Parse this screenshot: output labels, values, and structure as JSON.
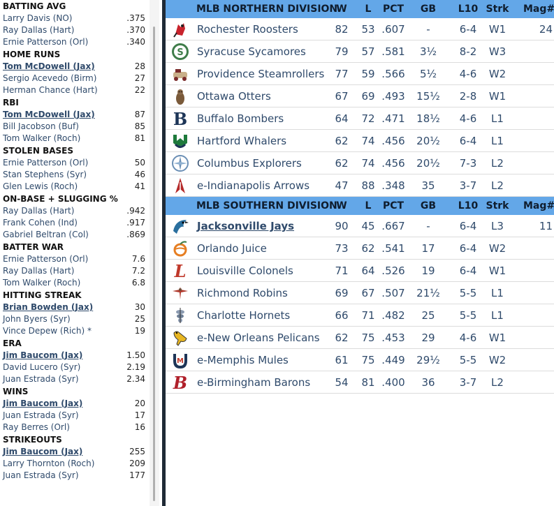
{
  "leaders": [
    {
      "title": "BATTING AVG",
      "rows": [
        {
          "name": "Larry Davis (NO)",
          "value": ".375",
          "own": false
        },
        {
          "name": "Ray Dallas (Hart)",
          "value": ".370",
          "own": false
        },
        {
          "name": "Ernie Patterson (Orl)",
          "value": ".340",
          "own": false
        }
      ]
    },
    {
      "title": "HOME RUNS",
      "rows": [
        {
          "name": "Tom McDowell (Jax)",
          "value": "28",
          "own": true
        },
        {
          "name": "Sergio Acevedo (Birm)",
          "value": "27",
          "own": false
        },
        {
          "name": "Herman Chance (Hart)",
          "value": "22",
          "own": false
        }
      ]
    },
    {
      "title": "RBI",
      "rows": [
        {
          "name": "Tom McDowell (Jax)",
          "value": "87",
          "own": true
        },
        {
          "name": "Bill Jacobson (Buf)",
          "value": "85",
          "own": false
        },
        {
          "name": "Tom Walker (Roch)",
          "value": "81",
          "own": false
        }
      ]
    },
    {
      "title": "STOLEN BASES",
      "rows": [
        {
          "name": "Ernie Patterson (Orl)",
          "value": "50",
          "own": false
        },
        {
          "name": "Stan Stephens (Syr)",
          "value": "46",
          "own": false
        },
        {
          "name": "Glen Lewis (Roch)",
          "value": "41",
          "own": false
        }
      ]
    },
    {
      "title": "ON-BASE + SLUGGING %",
      "rows": [
        {
          "name": "Ray Dallas (Hart)",
          "value": ".942",
          "own": false
        },
        {
          "name": "Frank Cohen (Ind)",
          "value": ".917",
          "own": false
        },
        {
          "name": "Gabriel Beltran (Col)",
          "value": ".869",
          "own": false
        }
      ]
    },
    {
      "title": "BATTER WAR",
      "rows": [
        {
          "name": "Ernie Patterson (Orl)",
          "value": "7.6",
          "own": false
        },
        {
          "name": "Ray Dallas (Hart)",
          "value": "7.2",
          "own": false
        },
        {
          "name": "Tom Walker (Roch)",
          "value": "6.8",
          "own": false
        }
      ]
    },
    {
      "title": "HITTING STREAK",
      "rows": [
        {
          "name": "Brian Bowden (Jax)",
          "value": "30",
          "own": true
        },
        {
          "name": "John Byers (Syr)",
          "value": "25",
          "own": false
        },
        {
          "name": "Vince Depew (Rich) *",
          "value": "19",
          "own": false
        }
      ]
    },
    {
      "title": "ERA",
      "rows": [
        {
          "name": "Jim Baucom (Jax)",
          "value": "1.50",
          "own": true
        },
        {
          "name": "David Lucero (Syr)",
          "value": "2.19",
          "own": false
        },
        {
          "name": "Juan Estrada (Syr)",
          "value": "2.34",
          "own": false
        }
      ]
    },
    {
      "title": "WINS",
      "rows": [
        {
          "name": "Jim Baucom (Jax)",
          "value": "20",
          "own": true
        },
        {
          "name": "Juan Estrada (Syr)",
          "value": "17",
          "own": false
        },
        {
          "name": "Ray Berres (Orl)",
          "value": "16",
          "own": false
        }
      ]
    },
    {
      "title": "STRIKEOUTS",
      "rows": [
        {
          "name": "Jim Baucom (Jax)",
          "value": "255",
          "own": true
        },
        {
          "name": "Larry Thornton (Roch)",
          "value": "209",
          "own": false
        },
        {
          "name": "Juan Estrada (Syr)",
          "value": "177",
          "own": false
        }
      ]
    }
  ],
  "columns": {
    "w": "W",
    "l": "L",
    "pct": "PCT",
    "gb": "GB",
    "l10": "L10",
    "strk": "Strk",
    "mag": "Mag#"
  },
  "divisions": [
    {
      "title": "MLB NORTHERN DIVISION",
      "teams": [
        {
          "name": "Rochester Roosters",
          "logo": "rooster-logo",
          "w": "82",
          "l": "53",
          "pct": ".607",
          "gb": "-",
          "l10": "6-4",
          "strk": "W1",
          "mag": "24",
          "own": false
        },
        {
          "name": "Syracuse Sycamores",
          "logo": "sycamore-logo",
          "w": "79",
          "l": "57",
          "pct": ".581",
          "gb": "3½",
          "l10": "8-2",
          "strk": "W3",
          "mag": "",
          "own": false
        },
        {
          "name": "Providence Steamrollers",
          "logo": "steamroller-logo",
          "w": "77",
          "l": "59",
          "pct": ".566",
          "gb": "5½",
          "l10": "4-6",
          "strk": "W2",
          "mag": "",
          "own": false
        },
        {
          "name": "Ottawa Otters",
          "logo": "otter-logo",
          "w": "67",
          "l": "69",
          "pct": ".493",
          "gb": "15½",
          "l10": "2-8",
          "strk": "W1",
          "mag": "",
          "own": false
        },
        {
          "name": "Buffalo Bombers",
          "logo": "letter-b-logo",
          "w": "64",
          "l": "72",
          "pct": ".471",
          "gb": "18½",
          "l10": "4-6",
          "strk": "L1",
          "mag": "",
          "own": false
        },
        {
          "name": "Hartford Whalers",
          "logo": "whalers-logo",
          "w": "62",
          "l": "74",
          "pct": ".456",
          "gb": "20½",
          "l10": "6-4",
          "strk": "L1",
          "mag": "",
          "own": false
        },
        {
          "name": "Columbus Explorers",
          "logo": "compass-logo",
          "w": "62",
          "l": "74",
          "pct": ".456",
          "gb": "20½",
          "l10": "7-3",
          "strk": "L2",
          "mag": "",
          "own": false
        },
        {
          "name": "e-Indianapolis Arrows",
          "logo": "arrow-logo",
          "w": "47",
          "l": "88",
          "pct": ".348",
          "gb": "35",
          "l10": "3-7",
          "strk": "L2",
          "mag": "",
          "own": false
        }
      ]
    },
    {
      "title": "MLB SOUTHERN DIVISION",
      "teams": [
        {
          "name": "Jacksonville Jays",
          "logo": "jay-logo",
          "w": "90",
          "l": "45",
          "pct": ".667",
          "gb": "-",
          "l10": "6-4",
          "strk": "L3",
          "mag": "11",
          "own": true
        },
        {
          "name": "Orlando Juice",
          "logo": "orange-logo",
          "w": "73",
          "l": "62",
          "pct": ".541",
          "gb": "17",
          "l10": "6-4",
          "strk": "W2",
          "mag": "",
          "own": false
        },
        {
          "name": "Louisville Colonels",
          "logo": "script-l-logo",
          "w": "71",
          "l": "64",
          "pct": ".526",
          "gb": "19",
          "l10": "6-4",
          "strk": "W1",
          "mag": "",
          "own": false
        },
        {
          "name": "Richmond Robins",
          "logo": "robin-logo",
          "w": "69",
          "l": "67",
          "pct": ".507",
          "gb": "21½",
          "l10": "5-5",
          "strk": "L1",
          "mag": "",
          "own": false
        },
        {
          "name": "Charlotte Hornets",
          "logo": "hornet-logo",
          "w": "66",
          "l": "71",
          "pct": ".482",
          "gb": "25",
          "l10": "5-5",
          "strk": "L1",
          "mag": "",
          "own": false
        },
        {
          "name": "e-New Orleans Pelicans",
          "logo": "pelican-logo",
          "w": "62",
          "l": "75",
          "pct": ".453",
          "gb": "29",
          "l10": "4-6",
          "strk": "W1",
          "mag": "",
          "own": false
        },
        {
          "name": "e-Memphis Mules",
          "logo": "horseshoe-m-logo",
          "w": "61",
          "l": "75",
          "pct": ".449",
          "gb": "29½",
          "l10": "5-5",
          "strk": "W2",
          "mag": "",
          "own": false
        },
        {
          "name": "e-Birmingham Barons",
          "logo": "script-b-logo",
          "w": "54",
          "l": "81",
          "pct": ".400",
          "gb": "36",
          "l10": "3-7",
          "strk": "L2",
          "mag": "",
          "own": false
        }
      ]
    }
  ],
  "colors": {
    "header_bg": "#63a7e8",
    "link": "#2f4a6b",
    "divider": "#1f2a36"
  }
}
